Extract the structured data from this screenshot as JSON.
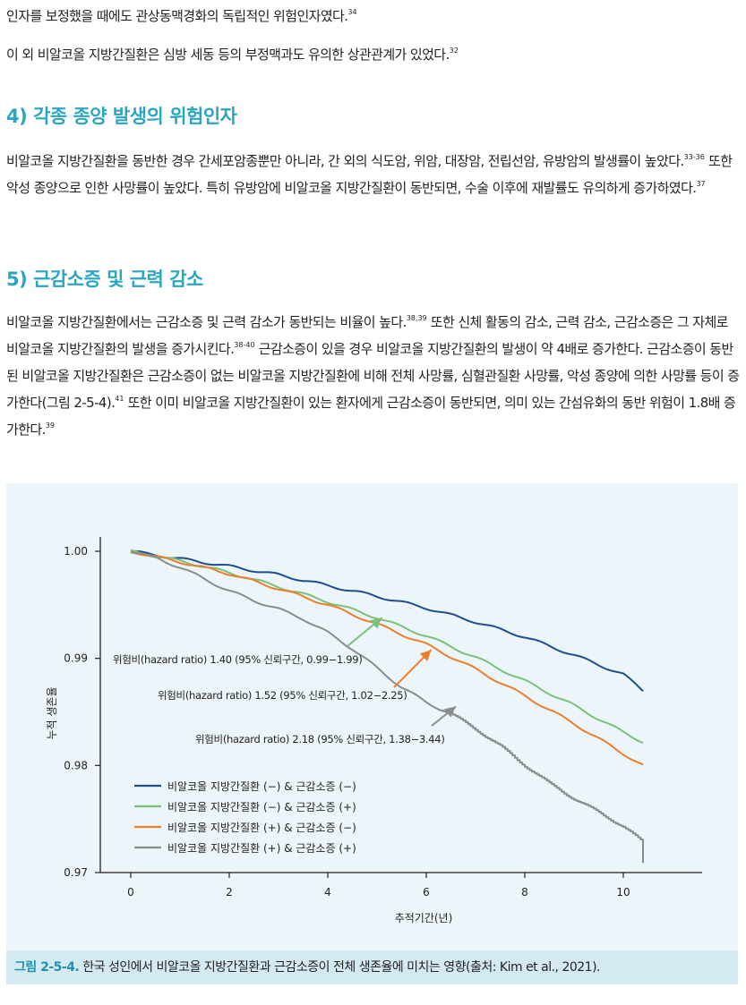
{
  "lines": [
    {
      "text": "인자를 보정했을 때에도 관상동맥경화의 독립적인 위험인자였다.",
      "sup": "34"
    },
    {
      "text": "이 외 비알코올 지방간질환은 심방 세동 등의 부정맥과도 유의한 상관관계가 있었다.",
      "sup": "32"
    }
  ],
  "section4": {
    "heading": "4) 각종 종양 발생의 위험인자",
    "p1": "비알코올 지방간질환을 동반한 경우 간세포암종뿐만 아니라, 간 외의 식도암, 위암, 대장암, 전립선암, 유방암의 발생률이 높았다.",
    "p1_sup1": "33-36",
    "p2": " 또한 악성 종양으로 인한 사망률이 높았다. 특히 유방암에 비알코올 지방간질환이 동반되면, 수술 이후에 재발률도 유의하게 증가하였다.",
    "p2_sup": "37"
  },
  "section5": {
    "heading": "5) 근감소증 및 근력 감소",
    "t1": "비알코올 지방간질환에서는 근감소증 및 근력 감소가 동반되는 비율이 높다.",
    "s1": "38,39",
    "t2": " 또한 신체 활동의 감소, 근력 감소, 근감소증은 그 자체로 비알코올 지방간질환의 발생을 증가시킨다.",
    "s2": "38-40",
    "t3": " 근감소증이 있을 경우 비알코올 지방간질환의 발생이 약 4배로 증가한다. 근감소증이 동반된 비알코올 지방간질환은 근감소증이 없는 비알코올 지방간질환에 비해 전체 사망률, 심혈관질환 사망률, 악성 종양에 의한 사망률 등이 증가한다(그림 2-5-4).",
    "s3": "41",
    "t4": " 또한 이미 비알코올 지방간질환이 있는 환자에게 근감소증이 동반되면, 의미 있는 간섬유화의 동반 위험이 1.8배 증가한다.",
    "s4": "39"
  },
  "figure": {
    "caption_label": "그림 2-5-4.",
    "caption_text": " 한국 성인에서 비알코올 지방간질환과 근감소증이 전체 생존율에 미치는 영향(출처: Kim et al., 2021)."
  },
  "chart_data": {
    "type": "line",
    "xlabel": "추적기간(년)",
    "ylabel": "누적 생존율",
    "xlim": [
      0,
      10.4
    ],
    "ylim": [
      0.97,
      1.0
    ],
    "x_ticks": [
      "0",
      "2",
      "4",
      "6",
      "8",
      "10"
    ],
    "x_tick_values": [
      0,
      2,
      4,
      6,
      8,
      10
    ],
    "y_ticks": [
      "0.97",
      "0.98",
      "0.99",
      "1.00"
    ],
    "y_tick_values": [
      0.97,
      0.98,
      0.99,
      1.0
    ],
    "legend_position": "bottom-left",
    "series": [
      {
        "name": "비알코올 지방간질환 (−) & 근감소증 (−)",
        "color": "#1f4e8c",
        "x": [
          0,
          1,
          2,
          3,
          4,
          5,
          6,
          7,
          8,
          9,
          10,
          10.4
        ],
        "y": [
          1.0,
          0.9993,
          0.9986,
          0.9978,
          0.9968,
          0.9958,
          0.9947,
          0.9934,
          0.992,
          0.9903,
          0.9885,
          0.987
        ]
      },
      {
        "name": "비알코올 지방간질환 (−) & 근감소증 (+)",
        "color": "#7cc17a",
        "x": [
          0,
          1,
          2,
          3,
          4,
          5,
          6,
          7,
          8,
          9,
          10,
          10.4
        ],
        "y": [
          1.0,
          0.9991,
          0.998,
          0.9967,
          0.9953,
          0.9938,
          0.9921,
          0.9901,
          0.9879,
          0.9856,
          0.9831,
          0.9822
        ]
      },
      {
        "name": "비알코올 지방간질환 (+) & 근감소증 (−)",
        "color": "#f07d2c",
        "x": [
          0,
          1,
          2,
          3,
          4,
          5,
          6,
          7,
          8,
          9,
          10,
          10.4
        ],
        "y": [
          1.0,
          0.999,
          0.9979,
          0.9965,
          0.995,
          0.9932,
          0.9913,
          0.989,
          0.9865,
          0.9839,
          0.9811,
          0.98
        ]
      },
      {
        "name": "비알코올 지방간질환 (+) & 근감소증 (+)",
        "color": "#8a8c8e",
        "x": [
          0,
          0.5,
          1,
          1.5,
          2,
          2.5,
          3,
          3.5,
          4,
          4.5,
          5,
          5.5,
          6,
          6.5,
          7,
          7.5,
          8,
          8.5,
          9,
          9.5,
          10,
          10.4
        ],
        "y": [
          1.0,
          0.9994,
          0.9985,
          0.9974,
          0.9963,
          0.9954,
          0.9946,
          0.9937,
          0.9924,
          0.9909,
          0.9891,
          0.9873,
          0.9859,
          0.9848,
          0.9834,
          0.9818,
          0.98,
          0.9783,
          0.9769,
          0.9756,
          0.9743,
          0.9728
        ]
      }
    ],
    "annotations": [
      {
        "text": "위험비(hazard ratio) 1.40 (95% 신뢰구간, 0.99−1.99)",
        "color": "#7cc17a",
        "arrow_to": [
          5.1,
          0.9938
        ]
      },
      {
        "text": "위험비(hazard ratio) 1.52 (95% 신뢰구간, 1.02−2.25)",
        "color": "#f07d2c",
        "arrow_to": [
          6.1,
          0.9908
        ]
      },
      {
        "text": "위험비(hazard ratio) 2.18 (95% 신뢰구간, 1.38−3.44)",
        "color": "#8a8c8e",
        "arrow_to": [
          6.6,
          0.9855
        ]
      }
    ]
  }
}
